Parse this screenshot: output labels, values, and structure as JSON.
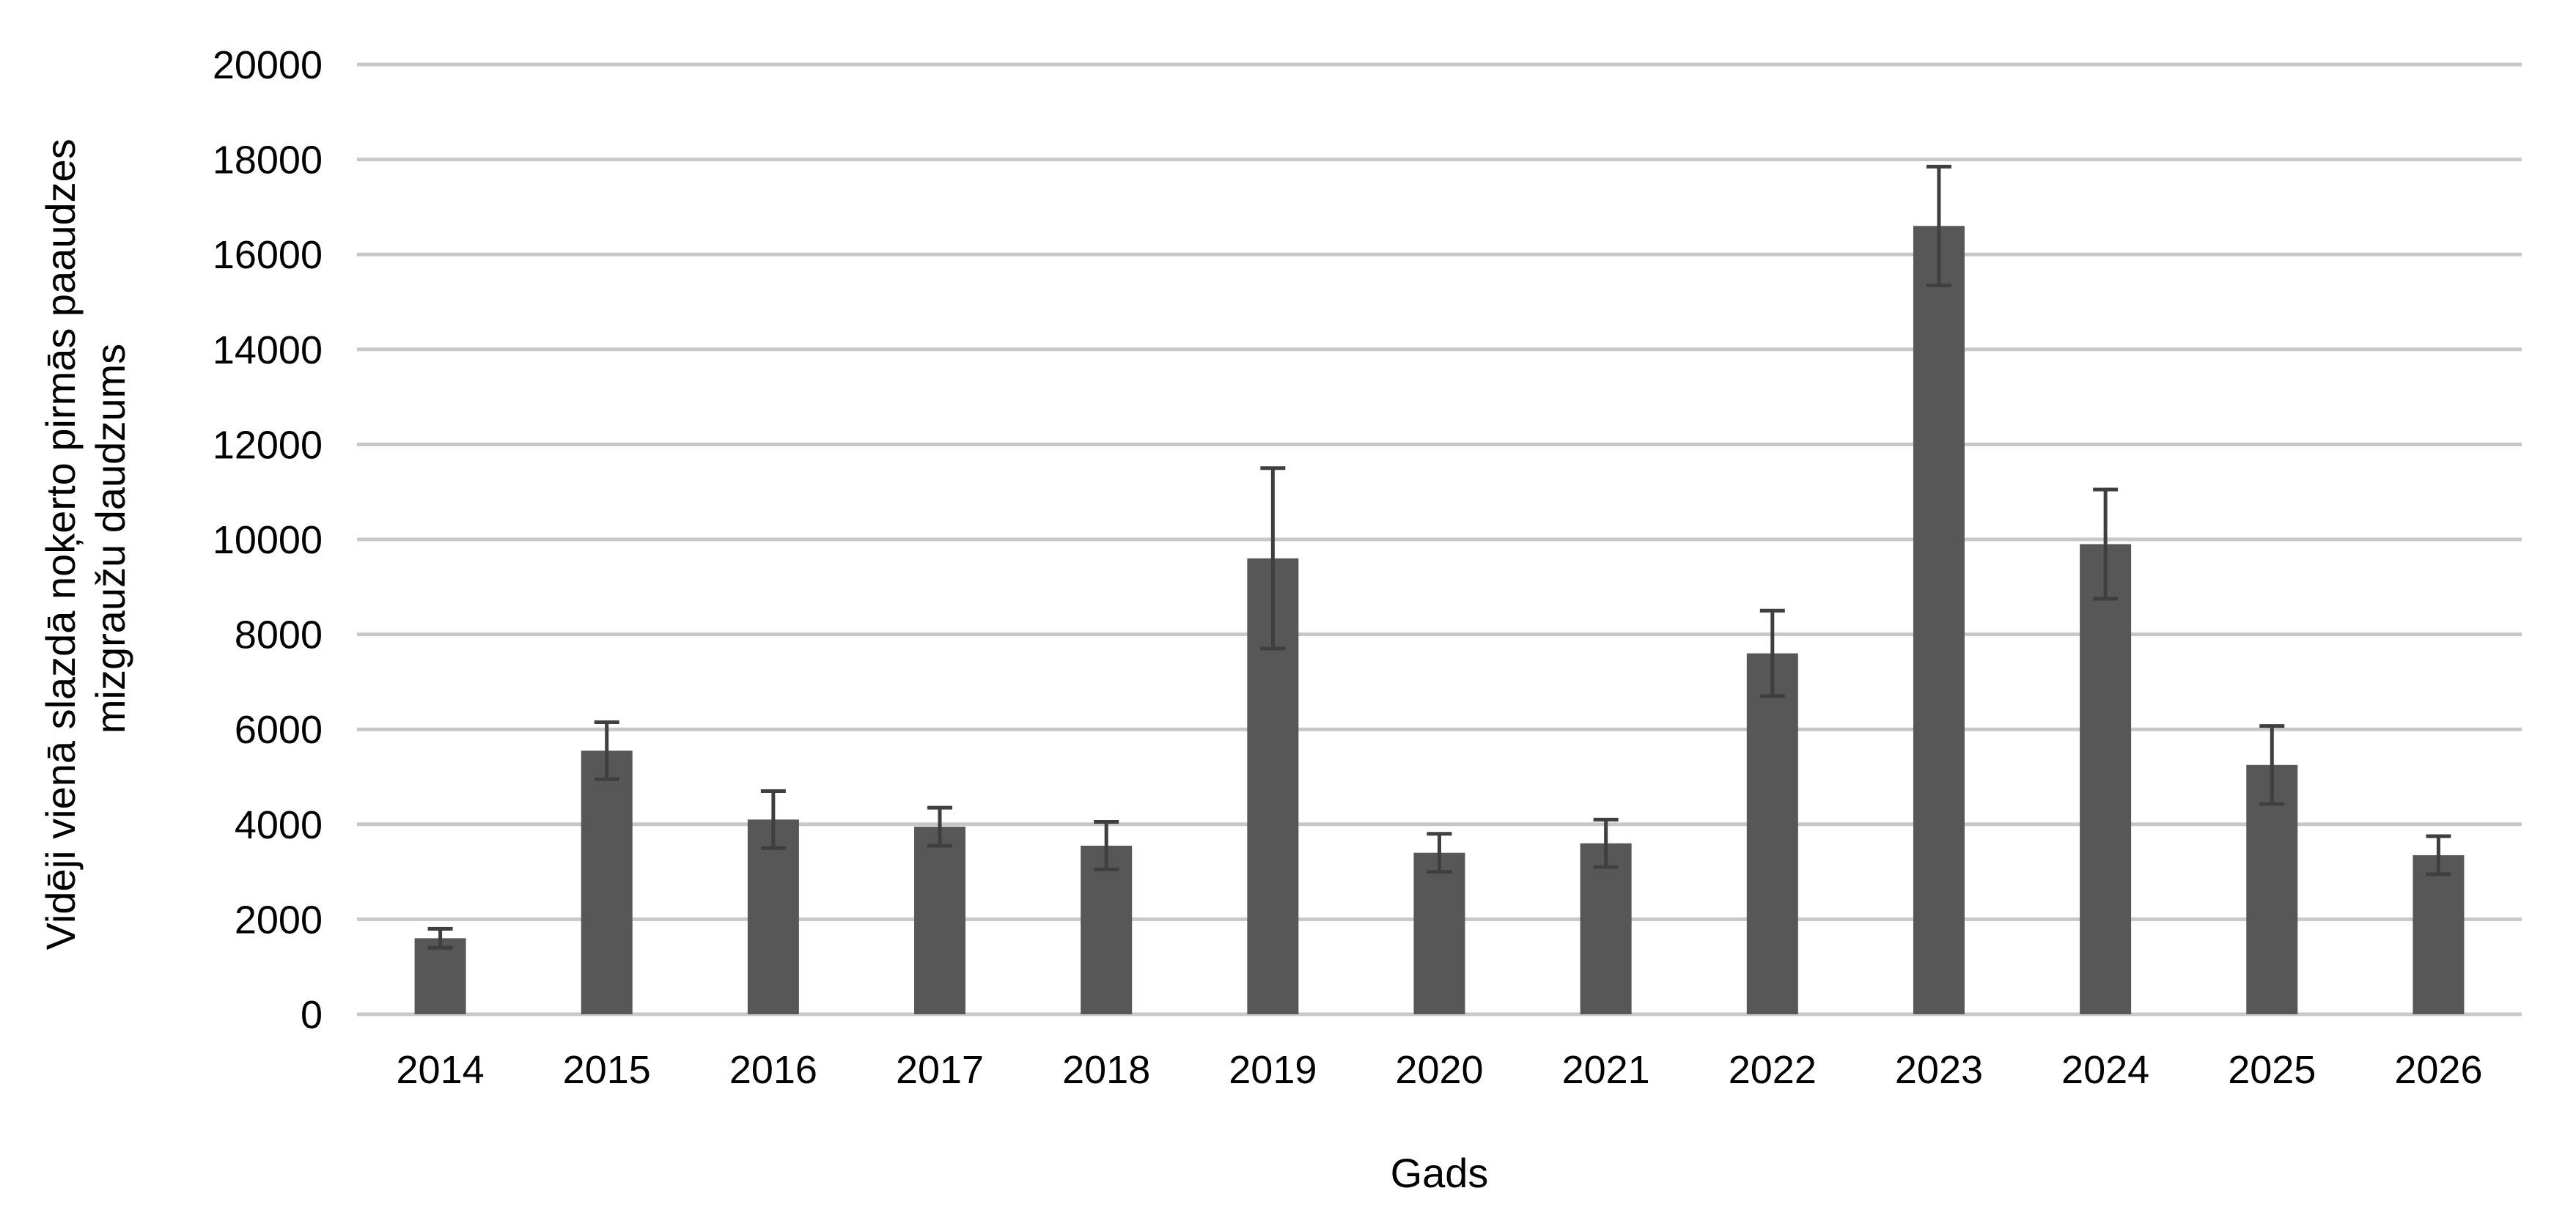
{
  "chart_data": {
    "type": "bar",
    "title": "",
    "xlabel": "Gads",
    "ylabel_lines": [
      "Vidēji vienā slazdā noķerto pirmās paaudzes",
      "mizgraužu daudzums"
    ],
    "categories": [
      "2014",
      "2015",
      "2016",
      "2017",
      "2018",
      "2019",
      "2020",
      "2021",
      "2022",
      "2023",
      "2024",
      "2025",
      "2026"
    ],
    "values": [
      1600,
      5550,
      4100,
      3950,
      3550,
      9600,
      3400,
      3600,
      7600,
      16600,
      9900,
      5250,
      3350
    ],
    "error": [
      200,
      600,
      600,
      400,
      500,
      1900,
      400,
      500,
      900,
      1250,
      1150,
      820,
      400
    ],
    "ylim": [
      0,
      20000
    ],
    "yticks": [
      "0",
      "2000",
      "4000",
      "6000",
      "8000",
      "10000",
      "12000",
      "14000",
      "16000",
      "18000",
      "20000"
    ],
    "grid": true,
    "legend": "none",
    "bar_color": "#575757",
    "error_color": "#3f3f3f",
    "grid_color": "#c8c8c8"
  }
}
